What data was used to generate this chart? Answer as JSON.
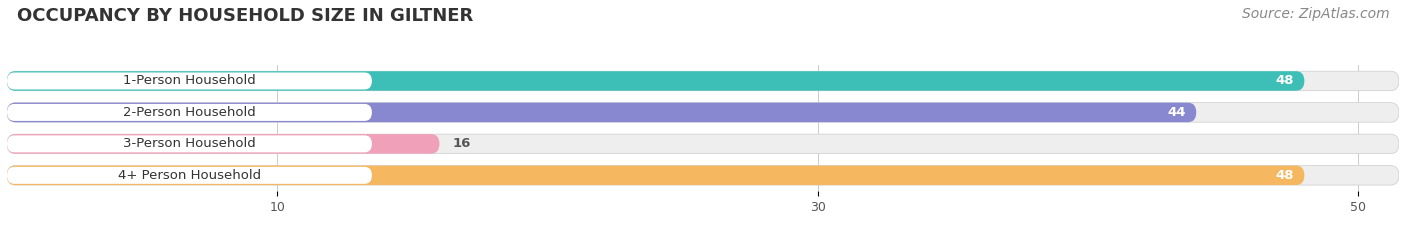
{
  "title": "OCCUPANCY BY HOUSEHOLD SIZE IN GILTNER",
  "source": "Source: ZipAtlas.com",
  "categories": [
    "1-Person Household",
    "2-Person Household",
    "3-Person Household",
    "4+ Person Household"
  ],
  "values": [
    48,
    44,
    16,
    48
  ],
  "bar_colors": [
    "#3dbfb8",
    "#8888d0",
    "#f0a0b8",
    "#f5b860"
  ],
  "bg_color": "#f0f0f0",
  "xlim_max": 51.5,
  "xticks": [
    10,
    30,
    50
  ],
  "title_fontsize": 13,
  "source_fontsize": 10,
  "label_fontsize": 9.5,
  "value_fontsize": 9.5,
  "background_color": "#ffffff"
}
